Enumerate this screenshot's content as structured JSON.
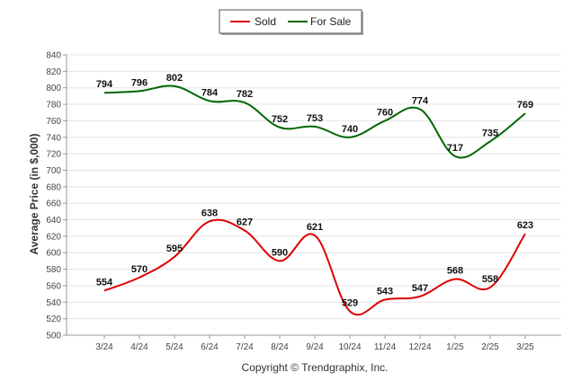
{
  "chart_data": {
    "type": "line",
    "title": "",
    "xlabel": "",
    "ylabel": "Average Price (in $,000)",
    "categories": [
      "3/24",
      "4/24",
      "5/24",
      "6/24",
      "7/24",
      "8/24",
      "9/24",
      "10/24",
      "11/24",
      "12/24",
      "1/25",
      "2/25",
      "3/25"
    ],
    "series": [
      {
        "name": "Sold",
        "color": "#dd0000",
        "values": [
          554,
          570,
          595,
          638,
          627,
          590,
          621,
          529,
          543,
          547,
          568,
          558,
          623
        ]
      },
      {
        "name": "For Sale",
        "color": "#006600",
        "values": [
          794,
          796,
          802,
          784,
          782,
          752,
          753,
          740,
          760,
          774,
          717,
          735,
          769
        ]
      }
    ],
    "ylim": [
      500,
      840
    ],
    "yticks": [
      500,
      520,
      540,
      560,
      580,
      600,
      620,
      640,
      660,
      680,
      700,
      720,
      740,
      760,
      780,
      800,
      820,
      840
    ],
    "grid": true,
    "legend": "top-center",
    "footer": "Copyright © Trendgraphix, Inc."
  }
}
